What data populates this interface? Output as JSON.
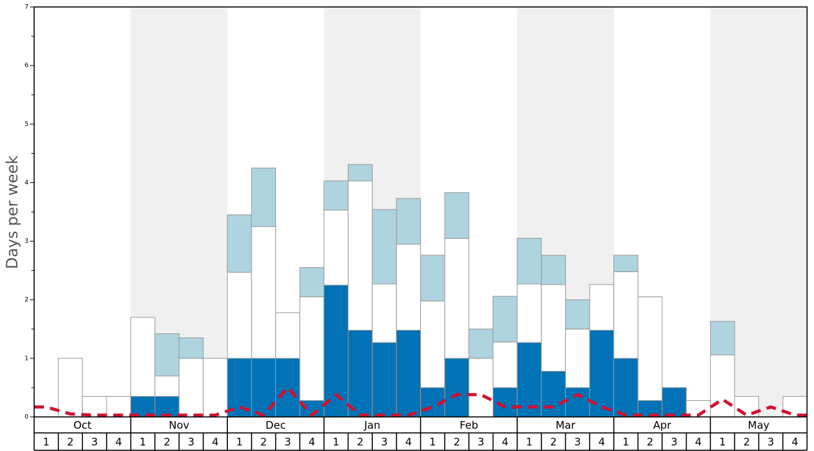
{
  "chart_data": {
    "type": "bar",
    "stacked": true,
    "ylabel": "Days per week",
    "ylim": [
      0,
      7
    ],
    "yticks": [
      "0",
      "1",
      "2",
      "3",
      "4",
      "5",
      "6",
      "7"
    ],
    "months": [
      "Oct",
      "Nov",
      "Dec",
      "Jan",
      "Feb",
      "Mar",
      "Apr",
      "May"
    ],
    "week_labels": [
      "1",
      "2",
      "3",
      "4"
    ],
    "colors": {
      "dark": "#0072b5",
      "white": "#ffffff",
      "light": "#aed4e0",
      "line": "#d01030",
      "band": "#f0f0f0",
      "bar_border": "#999999"
    },
    "series": [
      {
        "style": "dark",
        "values": [
          0,
          0,
          0,
          0,
          0.35,
          0.35,
          0,
          0,
          1,
          1,
          1,
          0.28,
          2.25,
          1.48,
          1.27,
          1.48,
          0.5,
          1,
          0,
          0.5,
          1.27,
          0.78,
          0.5,
          1.48,
          1,
          0.28,
          0.5,
          0,
          0,
          0,
          0,
          0
        ]
      },
      {
        "style": "white",
        "values": [
          0,
          1,
          0.35,
          0.35,
          1.35,
          0.35,
          1,
          1,
          1.47,
          2.25,
          0.78,
          1.77,
          1.28,
          2.55,
          1,
          1.47,
          1.48,
          2.05,
          1,
          0.78,
          1,
          1.48,
          1,
          0.78,
          1.48,
          1.77,
          0,
          0.28,
          1.06,
          0.35,
          0,
          0.35
        ]
      },
      {
        "style": "light",
        "values": [
          0,
          0,
          0,
          0,
          0,
          0.72,
          0.35,
          0,
          0.98,
          1,
          0,
          0.5,
          0.5,
          0.28,
          1.27,
          0.78,
          0.78,
          0.78,
          0.5,
          0.78,
          0.78,
          0.5,
          0.5,
          0,
          0.28,
          0,
          0,
          0,
          0.57,
          0,
          0,
          0
        ]
      },
      {
        "style": "line",
        "values": [
          0.17,
          0.05,
          0.03,
          0.03,
          0.03,
          0.03,
          0.03,
          0.03,
          0.17,
          0.03,
          0.5,
          0.03,
          0.38,
          0.03,
          0.03,
          0.03,
          0.17,
          0.38,
          0.38,
          0.17,
          0.17,
          0.17,
          0.38,
          0.17,
          0.03,
          0.03,
          0.03,
          0.03,
          0.3,
          0.03,
          0.17,
          0.03
        ]
      }
    ]
  }
}
